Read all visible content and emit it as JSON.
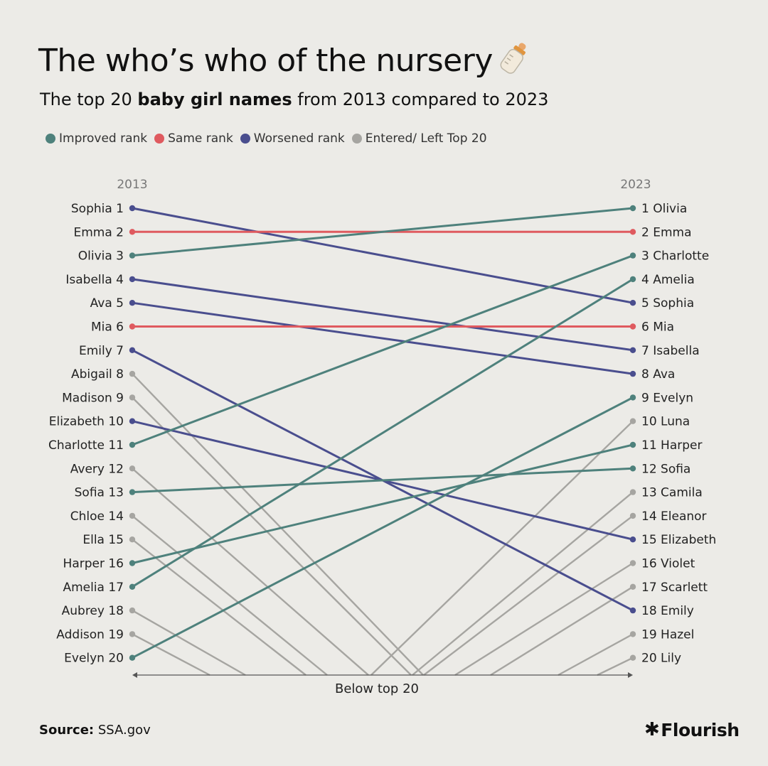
{
  "title": "The who’s who of the nursery",
  "subtitle": {
    "before": "The top 20 ",
    "bold": "baby girl names",
    "after": " from 2013 compared to 2023"
  },
  "legend": [
    {
      "label": "Improved rank",
      "color": "#4e817c"
    },
    {
      "label": "Same rank",
      "color": "#df5a5f"
    },
    {
      "label": "Worsened rank",
      "color": "#4a4e8e"
    },
    {
      "label": "Entered/ Left Top 20",
      "color": "#a6a5a1"
    }
  ],
  "source": {
    "label": "Source:",
    "text": "SSA.gov"
  },
  "brand": "Flourish",
  "brand_icon": "asterisk-icon",
  "title_icon": "baby-bottle-icon",
  "chart_data": {
    "type": "slope",
    "left_year": "2013",
    "right_year": "2023",
    "bottom_label": "Below top 20",
    "ranks_2013": [
      "Sophia",
      "Emma",
      "Olivia",
      "Isabella",
      "Ava",
      "Mia",
      "Emily",
      "Abigail",
      "Madison",
      "Elizabeth",
      "Charlotte",
      "Avery",
      "Sofia",
      "Chloe",
      "Ella",
      "Harper",
      "Amelia",
      "Aubrey",
      "Addison",
      "Evelyn"
    ],
    "ranks_2023": [
      "Olivia",
      "Emma",
      "Charlotte",
      "Amelia",
      "Sophia",
      "Mia",
      "Isabella",
      "Ava",
      "Evelyn",
      "Luna",
      "Harper",
      "Sofia",
      "Camila",
      "Eleanor",
      "Elizabeth",
      "Violet",
      "Scarlett",
      "Emily",
      "Hazel",
      "Lily"
    ],
    "colors": {
      "improved": "#4e817c",
      "same": "#df5a5f",
      "worsened": "#4a4e8e",
      "entered_left": "#a6a5a1"
    }
  }
}
